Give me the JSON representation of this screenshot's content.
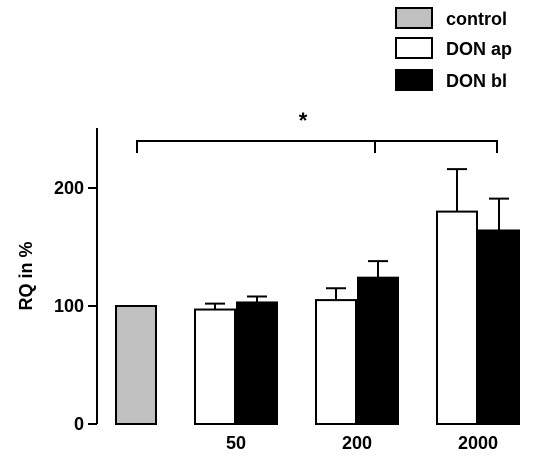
{
  "chart_data": {
    "type": "bar",
    "title": "",
    "xlabel": "",
    "ylabel": "RQ in %",
    "ylim": [
      0,
      250
    ],
    "yticks": [
      0,
      100,
      200
    ],
    "grid": false,
    "legend_position": "top-right",
    "groups": [
      {
        "label": "",
        "bars": [
          {
            "series": "control",
            "value": 100,
            "error": 0
          }
        ]
      },
      {
        "label": "50",
        "bars": [
          {
            "series": "DON ap",
            "value": 97,
            "error": 5
          },
          {
            "series": "DON bl",
            "value": 103,
            "error": 5
          }
        ]
      },
      {
        "label": "200",
        "bars": [
          {
            "series": "DON ap",
            "value": 105,
            "error": 10
          },
          {
            "series": "DON bl",
            "value": 124,
            "error": 14
          }
        ]
      },
      {
        "label": "2000",
        "bars": [
          {
            "series": "DON ap",
            "value": 180,
            "error": 36
          },
          {
            "series": "DON bl",
            "value": 164,
            "error": 27
          }
        ]
      }
    ],
    "series": [
      {
        "name": "control",
        "color": "#c0c0c0"
      },
      {
        "name": "DON ap",
        "color": "#ffffff"
      },
      {
        "name": "DON bl",
        "color": "#000000"
      }
    ],
    "annotations": [
      {
        "text": "*",
        "type": "significance-bracket"
      }
    ]
  }
}
